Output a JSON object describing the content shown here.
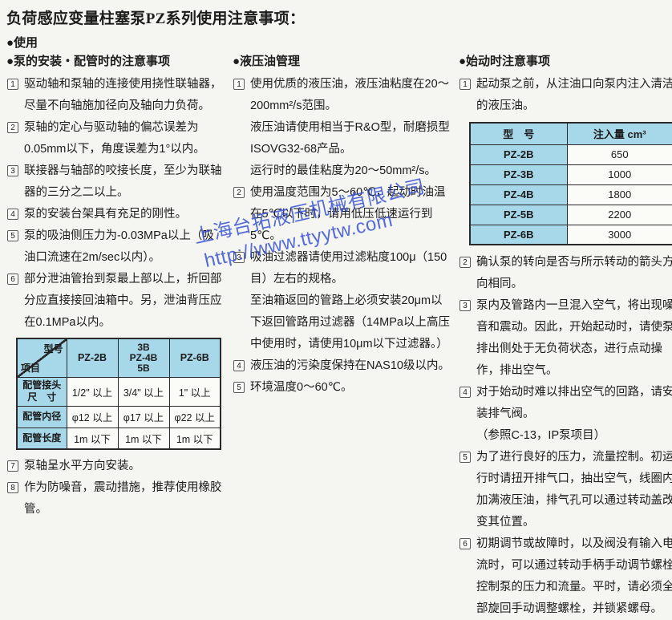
{
  "title": "负荷感应变量柱塞泵PZ系列使用注意事项：",
  "usage_header": "●使用",
  "colors": {
    "page_background": "#f5f5f2",
    "text": "#1c1c1c",
    "table_header_blue": "#a6d8ea",
    "table_border": "#2a2a2a",
    "watermark_blue": "#2b49d8"
  },
  "watermark": {
    "company": "上海台拓液压机械有限公司",
    "url": "http://www.ttyytw.com"
  },
  "sections": {
    "install": {
      "header": "●泵的安装・配管时的注意事项",
      "items": [
        {
          "num": "1",
          "paras": [
            "驱动轴和泵轴的连接使用挠性联轴器，尽量不向轴施加径向及轴向力负荷。"
          ]
        },
        {
          "num": "2",
          "paras": [
            "泵轴的定心与驱动轴的偏芯误差为0.05mm以下，角度误差为1°以内。"
          ]
        },
        {
          "num": "3",
          "paras": [
            "联接器与轴部的咬接长度，至少为联轴器的三分之二以上。"
          ]
        },
        {
          "num": "4",
          "paras": [
            "泵的安装台架具有充足的刚性。"
          ]
        },
        {
          "num": "5",
          "paras": [
            "泵的吸油侧压力为-0.03MPa以上（吸油口流速在2m/sec以内）。"
          ]
        },
        {
          "num": "6",
          "paras": [
            "部分泄油管抬到泵最上部以上，折回部分应直接接回油箱中。另，泄油背压应在0.1MPa以内。"
          ]
        },
        {
          "num": "7",
          "paras": [
            "泵轴呈水平方向安装。"
          ]
        },
        {
          "num": "8",
          "paras": [
            "作为防噪音，震动措施，推荐使用橡胶管。"
          ]
        }
      ],
      "piping_table": {
        "corner_top": "型号",
        "corner_bottom": "项目",
        "col_headers": [
          "PZ-2B",
          "3B\nPZ-4B\n5B",
          "PZ-6B"
        ],
        "rows": [
          {
            "label": "配管接头\n尺　寸",
            "values": [
              "1/2\" 以上",
              "3/4\" 以上",
              "1\" 以上"
            ]
          },
          {
            "label": "配管内径",
            "values": [
              "φ12 以上",
              "φ17 以上",
              "φ22 以上"
            ]
          },
          {
            "label": "配管长度",
            "values": [
              "1m 以下",
              "1m 以下",
              "1m 以下"
            ]
          }
        ]
      }
    },
    "oil": {
      "header": "●液压油管理",
      "items": [
        {
          "num": "1",
          "paras": [
            "使用优质的液压油，液压油粘度在20～200mm²/s范围。",
            "液压油请使用相当于R&O型，耐磨损型ISOVG32-68产品。",
            "运行时的最佳粘度为20～50mm²/s。"
          ]
        },
        {
          "num": "2",
          "paras": [
            "使用温度范围为5～60℃，起动时油温在5℃以下时，请用低压低速运行到5℃。"
          ]
        },
        {
          "num": "3",
          "paras": [
            "吸油过滤器请使用过滤粘度100μ（150目）左右的规格。",
            "至油箱返回的管路上必须安装20μm以下返回管路用过滤器（14MPa以上高压中使用时，请使用10μm以下过滤器。）"
          ]
        },
        {
          "num": "4",
          "paras": [
            "液压油的污染度保持在NAS10级以内。"
          ]
        },
        {
          "num": "5",
          "paras": [
            "环境温度0～60℃。"
          ]
        }
      ]
    },
    "startup": {
      "header": "●始动时注意事项",
      "items": [
        {
          "num": "1",
          "paras": [
            "起动泵之前，从注油口向泵内注入清洁的液压油。"
          ]
        },
        {
          "num": "2",
          "paras": [
            "确认泵的转向是否与所示转动的箭头方向相同。"
          ]
        },
        {
          "num": "3",
          "paras": [
            "泵内及管路内一旦混入空气，将出现噪音和震动。因此，开始起动时，请使泵排出侧处于无负荷状态，进行点动操作，排出空气。"
          ]
        },
        {
          "num": "4",
          "paras": [
            "对于始动时难以排出空气的回路，请安装排气阀。",
            "（参照C-13，IP泵项目）"
          ]
        },
        {
          "num": "5",
          "paras": [
            "为了进行良好的压力，流量控制。初运行时请扭开排气口，抽出空气，线圈内加满液压油，排气孔可以通过转动盖改变其位置。"
          ]
        },
        {
          "num": "6",
          "paras": [
            "初期调节或故障时，以及阀没有输入电流时，可以通过转动手柄手动调节螺栓控制泵的压力和流量。平时，请必须全部旋回手动调整螺栓，并锁紧螺母。"
          ]
        }
      ],
      "fill_table": {
        "headers": [
          "型　号",
          "注入量 cm³"
        ],
        "rows": [
          [
            "PZ-2B",
            "650"
          ],
          [
            "PZ-3B",
            "1000"
          ],
          [
            "PZ-4B",
            "1800"
          ],
          [
            "PZ-5B",
            "2200"
          ],
          [
            "PZ-6B",
            "3000"
          ]
        ]
      }
    }
  }
}
